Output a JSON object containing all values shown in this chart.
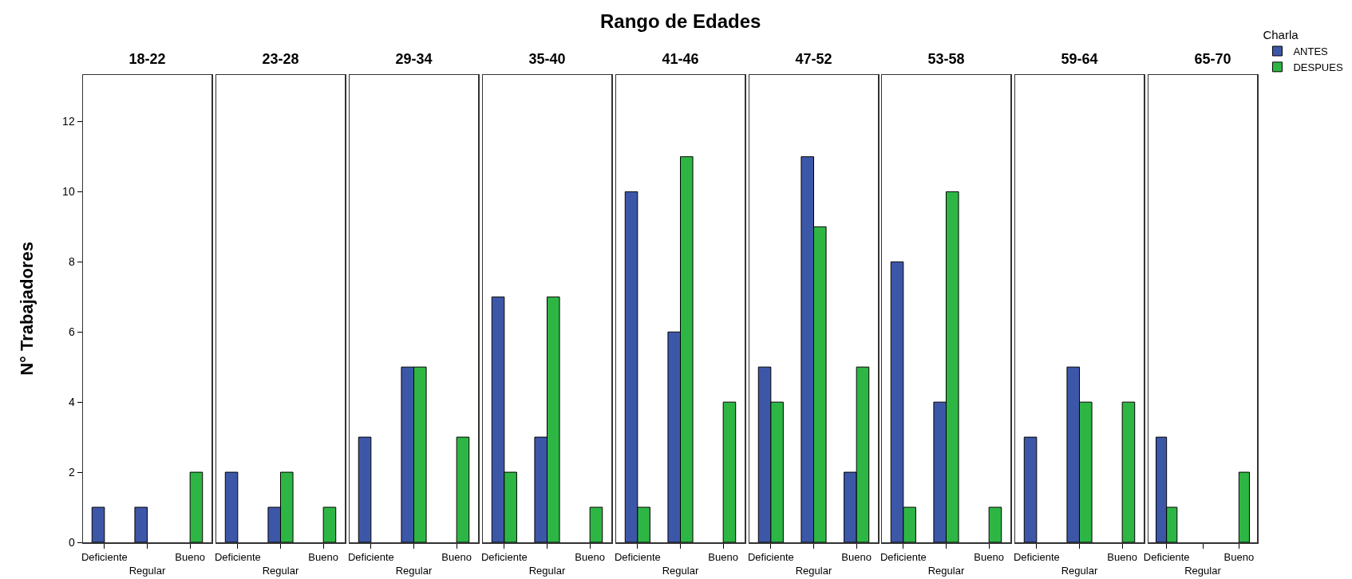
{
  "chart_data": [
    {
      "type": "bar",
      "title": "18-22",
      "ylabel": "N° Trabajadores",
      "categories": [
        "Deficiente",
        "Regular",
        "Bueno"
      ],
      "series": [
        {
          "color": "#3d57a8",
          "values": [
            1,
            1,
            null
          ]
        },
        {
          "color": "#2eb645",
          "values": [
            null,
            null,
            2
          ]
        }
      ],
      "ylim": [
        0,
        13.33
      ],
      "yticks": [
        0,
        2,
        4,
        6,
        8,
        10,
        12
      ],
      "grid": false,
      "legend": false
    },
    {
      "type": "bar",
      "title": "23-28",
      "categories": [
        "Deficiente",
        "Regular",
        "Bueno"
      ],
      "series": [
        {
          "color": "#3d57a8",
          "values": [
            2,
            1,
            null
          ]
        },
        {
          "color": "#2eb645",
          "values": [
            null,
            2,
            1
          ]
        }
      ],
      "ylim": [
        0,
        13.33
      ],
      "yticks": [
        0,
        2,
        4,
        6,
        8,
        10,
        12
      ],
      "tick_labels": "x",
      "grid": false,
      "legend": false
    },
    {
      "type": "bar",
      "title": "29-34",
      "categories": [
        "Deficiente",
        "Regular",
        "Bueno"
      ],
      "series": [
        {
          "color": "#3d57a8",
          "values": [
            3,
            5,
            null
          ]
        },
        {
          "color": "#2eb645",
          "values": [
            null,
            5,
            3
          ]
        }
      ],
      "ylim": [
        0,
        13.33
      ],
      "yticks": [
        0,
        2,
        4,
        6,
        8,
        10,
        12
      ],
      "tick_labels": "x",
      "grid": false,
      "legend": false
    },
    {
      "type": "bar",
      "title": "35-40",
      "categories": [
        "Deficiente",
        "Regular",
        "Bueno"
      ],
      "series": [
        {
          "color": "#3d57a8",
          "values": [
            7,
            3,
            null
          ]
        },
        {
          "color": "#2eb645",
          "values": [
            2,
            7,
            1
          ]
        }
      ],
      "ylim": [
        0,
        13.33
      ],
      "yticks": [
        0,
        2,
        4,
        6,
        8,
        10,
        12
      ],
      "tick_labels": "x",
      "grid": false,
      "legend": false
    },
    {
      "type": "bar",
      "title": "41-46",
      "annotations": [
        "Rango de Edades"
      ],
      "categories": [
        "Deficiente",
        "Regular",
        "Bueno"
      ],
      "series": [
        {
          "color": "#3d57a8",
          "values": [
            10,
            6,
            null
          ]
        },
        {
          "color": "#2eb645",
          "values": [
            1,
            11,
            4
          ]
        }
      ],
      "ylim": [
        0,
        13.33
      ],
      "yticks": [
        0,
        2,
        4,
        6,
        8,
        10,
        12
      ],
      "tick_labels": "x",
      "grid": false,
      "legend": false
    },
    {
      "type": "bar",
      "title": "47-52",
      "categories": [
        "Deficiente",
        "Regular",
        "Bueno"
      ],
      "series": [
        {
          "color": "#3d57a8",
          "values": [
            5,
            11,
            2
          ]
        },
        {
          "color": "#2eb645",
          "values": [
            4,
            9,
            5
          ]
        }
      ],
      "ylim": [
        0,
        13.33
      ],
      "yticks": [
        0,
        2,
        4,
        6,
        8,
        10,
        12
      ],
      "tick_labels": "x",
      "grid": false,
      "legend": false
    },
    {
      "type": "bar",
      "title": "53-58",
      "categories": [
        "Deficiente",
        "Regular",
        "Bueno"
      ],
      "series": [
        {
          "color": "#3d57a8",
          "values": [
            8,
            4,
            null
          ]
        },
        {
          "color": "#2eb645",
          "values": [
            1,
            10,
            1
          ]
        }
      ],
      "ylim": [
        0,
        13.33
      ],
      "yticks": [
        0,
        2,
        4,
        6,
        8,
        10,
        12
      ],
      "tick_labels": "x",
      "grid": false,
      "legend": false
    },
    {
      "type": "bar",
      "title": "59-64",
      "categories": [
        "Deficiente",
        "Regular",
        "Bueno"
      ],
      "series": [
        {
          "color": "#3d57a8",
          "values": [
            3,
            5,
            null
          ]
        },
        {
          "color": "#2eb645",
          "values": [
            null,
            4,
            4
          ]
        }
      ],
      "ylim": [
        0,
        13.33
      ],
      "yticks": [
        0,
        2,
        4,
        6,
        8,
        10,
        12
      ],
      "tick_labels": "x",
      "grid": false,
      "legend": false
    },
    {
      "type": "bar",
      "title": "65-70",
      "legend_title": "Charla",
      "categories": [
        "Deficiente",
        "Regular",
        "Bueno"
      ],
      "series": [
        {
          "name": "ANTES",
          "color": "#3d57a8",
          "values": [
            3,
            null,
            null
          ]
        },
        {
          "name": "DESPUES",
          "color": "#2eb645",
          "values": [
            1,
            null,
            2
          ]
        }
      ],
      "ylim": [
        0,
        13.33
      ],
      "yticks": [
        0,
        2,
        4,
        6,
        8,
        10,
        12
      ],
      "tick_labels": "x",
      "grid": false,
      "legend": "top right"
    }
  ]
}
